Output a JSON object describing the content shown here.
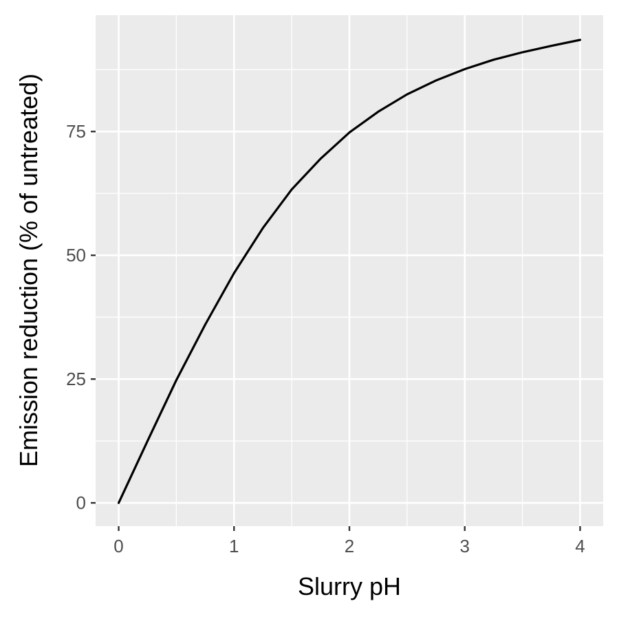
{
  "chart_data": {
    "type": "line",
    "title": "",
    "xlabel": "Slurry pH",
    "ylabel": "Emission reduction (% of untreated)",
    "xlim": [
      -0.2,
      4.2
    ],
    "ylim": [
      -4.7,
      98.5
    ],
    "x_ticks": [
      0,
      1,
      2,
      3,
      4
    ],
    "y_ticks": [
      0,
      25,
      50,
      75
    ],
    "x_minor": [
      0.5,
      1.5,
      2.5,
      3.5
    ],
    "y_minor": [
      12.5,
      37.5,
      62.5,
      87.5
    ],
    "grid": true,
    "legend": "none",
    "colors": {
      "panel": "#ebebeb",
      "grid": "#ffffff",
      "line": "#000000",
      "tick_text": "#4d4d4d",
      "tick_mark": "#333333"
    },
    "series": [
      {
        "x": [
          0,
          0.25,
          0.5,
          0.75,
          1.0,
          1.25,
          1.5,
          1.75,
          2.0,
          2.25,
          2.5,
          2.75,
          3.0,
          3.25,
          3.5,
          3.75,
          4.0
        ],
        "values": [
          0,
          12.5,
          24.8,
          36.0,
          46.4,
          55.5,
          63.3,
          69.5,
          74.8,
          79.0,
          82.5,
          85.3,
          87.6,
          89.5,
          91.0,
          92.3,
          93.5
        ]
      }
    ]
  }
}
